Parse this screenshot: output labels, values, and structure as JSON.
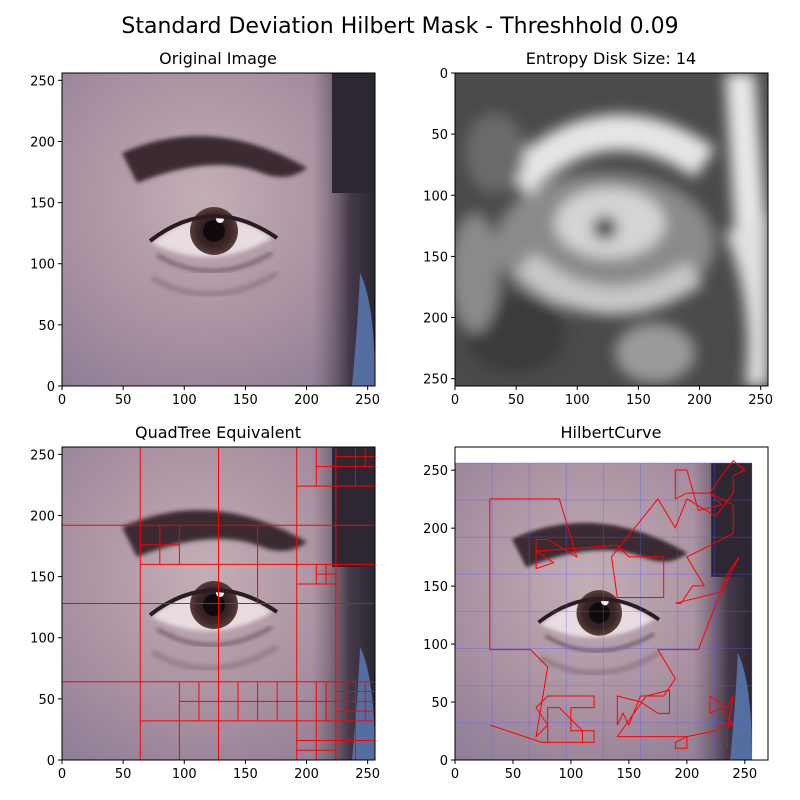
{
  "title": "Standard Deviation Hilbert Mask - Threshhold 0.09",
  "colors": {
    "quadtree_lines": "#ff0000",
    "hilbert_curve": "#ff0000",
    "hilbert_grid": "#5a5aff",
    "skin_base": "#b6a0a8",
    "entropy_dark": "#2a2a2a",
    "entropy_light": "#efefef"
  },
  "chart_data": [
    {
      "type": "image",
      "title": "Original Image",
      "xticks": [
        "0",
        "50",
        "100",
        "150",
        "200",
        "250"
      ],
      "yticks": [
        "0",
        "50",
        "100",
        "150",
        "200",
        "250"
      ],
      "xlim": [
        0,
        256
      ],
      "ylim": [
        0,
        256
      ],
      "y_origin": "bottom"
    },
    {
      "type": "heatmap",
      "title": "Entropy Disk Size: 14",
      "xticks": [
        "0",
        "50",
        "100",
        "150",
        "200",
        "250"
      ],
      "yticks": [
        "0",
        "50",
        "100",
        "150",
        "200",
        "250"
      ],
      "xlim": [
        0,
        256
      ],
      "ylim": [
        0,
        256
      ],
      "y_origin": "top",
      "colormap": "gray"
    },
    {
      "type": "image",
      "title": "QuadTree Equivalent",
      "xticks": [
        "0",
        "50",
        "100",
        "150",
        "200",
        "250"
      ],
      "yticks": [
        "0",
        "50",
        "100",
        "150",
        "200",
        "250"
      ],
      "xlim": [
        0,
        256
      ],
      "ylim": [
        0,
        256
      ],
      "y_origin": "bottom",
      "vertical_lines": [
        {
          "x": 64,
          "y": [
            0,
            256
          ]
        },
        {
          "x": 128,
          "y": [
            0,
            256
          ]
        },
        {
          "x": 192,
          "y": [
            0,
            256
          ]
        },
        {
          "x": 224,
          "y": [
            0,
            256
          ]
        },
        {
          "x": 96,
          "y": [
            0,
            64
          ]
        },
        {
          "x": 112,
          "y": [
            32,
            64
          ]
        },
        {
          "x": 144,
          "y": [
            32,
            64
          ]
        },
        {
          "x": 160,
          "y": [
            32,
            64
          ]
        },
        {
          "x": 176,
          "y": [
            32,
            64
          ]
        },
        {
          "x": 208,
          "y": [
            0,
            64
          ]
        },
        {
          "x": 216,
          "y": [
            32,
            64
          ]
        },
        {
          "x": 240,
          "y": [
            0,
            64
          ]
        },
        {
          "x": 232,
          "y": [
            32,
            64
          ]
        },
        {
          "x": 248,
          "y": [
            32,
            64
          ]
        },
        {
          "x": 96,
          "y": [
            160,
            192
          ]
        },
        {
          "x": 80,
          "y": [
            160,
            192
          ]
        },
        {
          "x": 160,
          "y": [
            128,
            192
          ]
        },
        {
          "x": 208,
          "y": [
            144,
            160
          ]
        },
        {
          "x": 216,
          "y": [
            144,
            160
          ]
        },
        {
          "x": 240,
          "y": [
            224,
            256
          ]
        },
        {
          "x": 248,
          "y": [
            240,
            256
          ]
        },
        {
          "x": 208,
          "y": [
            224,
            256
          ]
        }
      ],
      "horizontal_lines": [
        {
          "y": 64,
          "x": [
            0,
            256
          ]
        },
        {
          "y": 128,
          "x": [
            0,
            256
          ]
        },
        {
          "y": 192,
          "x": [
            0,
            256
          ]
        },
        {
          "y": 160,
          "x": [
            64,
            256
          ]
        },
        {
          "y": 224,
          "x": [
            192,
            256
          ]
        },
        {
          "y": 32,
          "x": [
            64,
            256
          ]
        },
        {
          "y": 48,
          "x": [
            96,
            256
          ]
        },
        {
          "y": 16,
          "x": [
            192,
            256
          ]
        },
        {
          "y": 8,
          "x": [
            192,
            224
          ]
        },
        {
          "y": 176,
          "x": [
            64,
            96
          ]
        },
        {
          "y": 144,
          "x": [
            192,
            224
          ]
        },
        {
          "y": 152,
          "x": [
            208,
            224
          ]
        },
        {
          "y": 240,
          "x": [
            208,
            256
          ]
        },
        {
          "y": 248,
          "x": [
            224,
            256
          ]
        },
        {
          "y": 56,
          "x": [
            224,
            256
          ]
        },
        {
          "y": 40,
          "x": [
            224,
            256
          ]
        }
      ]
    },
    {
      "type": "line",
      "title": "HilbertCurve",
      "xticks": [
        "0",
        "50",
        "100",
        "150",
        "200",
        "250"
      ],
      "yticks": [
        "0",
        "50",
        "100",
        "150",
        "200",
        "250"
      ],
      "xlim": [
        0,
        270
      ],
      "ylim": [
        0,
        270
      ],
      "image_extent": [
        0,
        256
      ],
      "x": [
        30,
        40,
        60,
        70,
        80,
        90,
        110,
        110,
        120,
        120,
        100,
        90,
        80,
        90,
        100,
        110,
        120,
        140,
        150,
        160,
        180,
        170,
        180,
        170,
        140,
        140,
        150,
        160,
        170,
        180,
        200,
        220,
        230,
        240,
        240,
        230,
        220,
        210,
        200,
        210,
        190,
        200,
        210,
        220,
        220,
        240,
        220,
        220,
        210,
        220,
        240,
        250,
        230,
        220,
        200,
        190,
        180,
        170,
        140,
        140,
        150,
        140,
        120,
        110,
        100,
        80,
        70,
        70,
        80,
        90,
        110,
        90,
        80,
        70,
        70,
        80,
        70,
        60,
        50,
        50,
        60,
        80,
        90,
        90,
        80,
        70,
        60,
        30
      ],
      "y": [
        30,
        25,
        20,
        20,
        15,
        15,
        15,
        25,
        45,
        55,
        55,
        45,
        35,
        30,
        25,
        20,
        15,
        15,
        25,
        45,
        55,
        60,
        80,
        95,
        95,
        105,
        115,
        125,
        135,
        145,
        150,
        150,
        150,
        160,
        170,
        175,
        180,
        175,
        170,
        165,
        160,
        155,
        150,
        145,
        130,
        120,
        110,
        100,
        90,
        80,
        70,
        60,
        55,
        45,
        35,
        40,
        30,
        25,
        20,
        25,
        30,
        40,
        45,
        40,
        50,
        45,
        50,
        60,
        55,
        45,
        40,
        35,
        30,
        25,
        20,
        15,
        15,
        20,
        25,
        35,
        40,
        45,
        55,
        60,
        65,
        55,
        45,
        30
      ],
      "curve_points": [
        [
          30,
          30
        ],
        [
          90,
          15
        ],
        [
          110,
          15
        ],
        [
          120,
          15
        ],
        [
          120,
          55
        ],
        [
          100,
          55
        ],
        [
          100,
          45
        ],
        [
          120,
          45
        ],
        [
          120,
          15
        ],
        [
          140,
          15
        ],
        [
          180,
          45
        ],
        [
          190,
          45
        ],
        [
          190,
          55
        ],
        [
          180,
          55
        ],
        [
          175,
          70
        ],
        [
          160,
          95
        ],
        [
          120,
          95
        ],
        [
          90,
          80
        ],
        [
          75,
          75
        ],
        [
          110,
          55
        ],
        [
          112,
          45
        ],
        [
          110,
          40
        ],
        [
          120,
          40
        ]
      ]
    }
  ],
  "hilbert_polyline": [
    [
      30,
      30
    ],
    [
      75,
      15
    ],
    [
      110,
      15
    ],
    [
      110,
      45
    ],
    [
      120,
      45
    ],
    [
      120,
      55
    ],
    [
      100,
      55
    ],
    [
      100,
      45
    ],
    [
      80,
      45
    ],
    [
      70,
      15
    ],
    [
      75,
      50
    ],
    [
      65,
      50
    ],
    [
      65,
      95
    ],
    [
      150,
      95
    ],
    [
      150,
      105
    ],
    [
      140,
      140
    ],
    [
      185,
      175
    ],
    [
      185,
      130
    ],
    [
      175,
      95
    ],
    [
      210,
      95
    ],
    [
      215,
      45
    ],
    [
      225,
      40
    ],
    [
      240,
      45
    ],
    [
      240,
      55
    ],
    [
      230,
      55
    ],
    [
      225,
      35
    ],
    [
      240,
      30
    ],
    [
      240,
      5
    ],
    [
      225,
      10
    ],
    [
      225,
      20
    ],
    [
      215,
      15
    ],
    [
      210,
      10
    ],
    [
      205,
      5
    ],
    [
      195,
      10
    ],
    [
      200,
      5
    ],
    [
      195,
      0
    ],
    [
      190,
      15
    ],
    [
      180,
      15
    ],
    [
      140,
      20
    ],
    [
      145,
      40
    ],
    [
      165,
      40
    ],
    [
      165,
      50
    ],
    [
      175,
      50
    ],
    [
      180,
      20
    ]
  ]
}
